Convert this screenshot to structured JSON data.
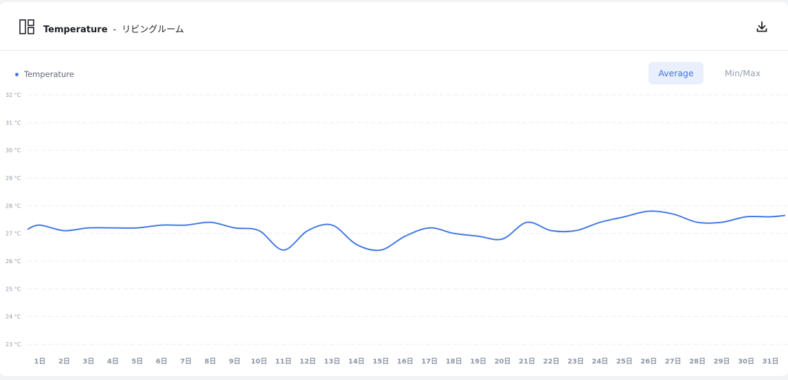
{
  "header": {
    "title": "Temperature",
    "separator": "-",
    "location": "リビングルーム",
    "layout_icon": "layout-panels-icon",
    "download_icon": "download-icon"
  },
  "legend": {
    "label": "Temperature",
    "color": "#4178e3"
  },
  "toggle": {
    "average_label": "Average",
    "minmax_label": "Min/Max",
    "active": "Average"
  },
  "chart_data": {
    "type": "line",
    "x": [
      "1日",
      "2日",
      "3日",
      "4日",
      "5日",
      "6日",
      "7日",
      "8日",
      "9日",
      "10日",
      "11日",
      "12日",
      "13日",
      "14日",
      "15日",
      "16日",
      "17日",
      "18日",
      "19日",
      "20日",
      "21日",
      "22日",
      "23日",
      "24日",
      "25日",
      "26日",
      "27日",
      "28日",
      "29日",
      "30日",
      "31日"
    ],
    "series": [
      {
        "name": "Temperature",
        "color": "#4178e3",
        "values": [
          27.3,
          27.1,
          27.2,
          27.2,
          27.2,
          27.3,
          27.3,
          27.4,
          27.2,
          27.1,
          26.4,
          27.1,
          27.3,
          26.6,
          26.4,
          26.9,
          27.2,
          27.0,
          26.9,
          26.8,
          27.4,
          27.1,
          27.1,
          27.4,
          27.6,
          27.8,
          27.7,
          27.4,
          27.4,
          27.6,
          27.6
        ]
      }
    ],
    "start_value": 27.15,
    "end_value": 27.65,
    "y_ticks": [
      "23 °C",
      "24 °C",
      "25 °C",
      "26 °C",
      "27 °C",
      "28 °C",
      "29 °C",
      "30 °C",
      "31 °C",
      "32 °C"
    ],
    "ylim": [
      23,
      32
    ],
    "grid": true,
    "legend_position": "top-left"
  }
}
